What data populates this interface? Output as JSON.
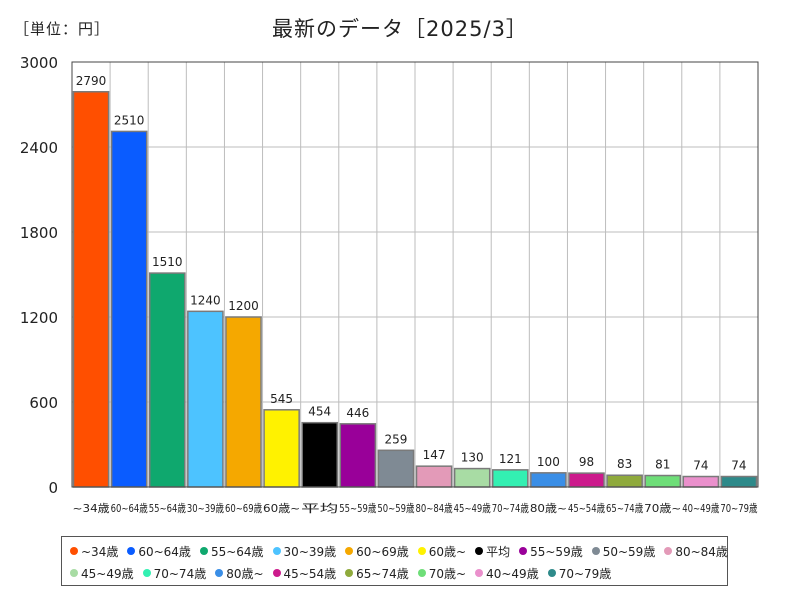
{
  "unit": "［単位：円］",
  "title": "最新のデータ［2025/3］",
  "chart_data": {
    "type": "bar",
    "ylim": [
      0,
      3000
    ],
    "yticks": [
      0,
      600,
      1200,
      1800,
      2400,
      3000
    ],
    "grid": true,
    "legend_position": "bottom",
    "categories": [
      "~34歳",
      "60~64歳",
      "55~64歳",
      "30~39歳",
      "60~69歳",
      "60歳~",
      "平均",
      "55~59歳",
      "50~59歳",
      "80~84歳",
      "45~49歳",
      "70~74歳",
      "80歳~",
      "45~54歳",
      "65~74歳",
      "70歳~",
      "40~49歳",
      "70~79歳"
    ],
    "values": [
      2790,
      2510,
      1510,
      1240,
      1200,
      545,
      454,
      446,
      259,
      147,
      130,
      121,
      100,
      98,
      83,
      81,
      74,
      74
    ],
    "colors": [
      "#ff4f00",
      "#0a5cff",
      "#0fa86e",
      "#4dc3ff",
      "#f5a800",
      "#fff200",
      "#000000",
      "#990099",
      "#7f8a94",
      "#e39ab8",
      "#a8dca4",
      "#33f0b2",
      "#3a8ee6",
      "#cc1a8c",
      "#8faa3c",
      "#6ede78",
      "#ea90cc",
      "#2e8a8a"
    ],
    "xtick_labels": [
      "~34歳",
      "60~64歳",
      "55~64歳",
      "30~39歳",
      "60~69歳",
      "60歳~",
      "平均",
      "55~59歳",
      "50~59歳",
      "80~84歳",
      "45~49歳",
      "70~74歳",
      "80歳~",
      "45~54歳",
      "65~74歳",
      "70歳~",
      "40~49歳",
      "70~79歳"
    ]
  },
  "legend": {
    "rows": [
      [
        "~34歳",
        "60~64歳",
        "55~64歳",
        "30~39歳",
        "60~69歳",
        "60歳~",
        "平均",
        "55~59歳",
        "50~59歳",
        "80~84歳"
      ],
      [
        "45~49歳",
        "70~74歳",
        "80歳~",
        "45~54歳",
        "65~74歳",
        "70歳~",
        "40~49歳",
        "70~79歳"
      ]
    ]
  }
}
